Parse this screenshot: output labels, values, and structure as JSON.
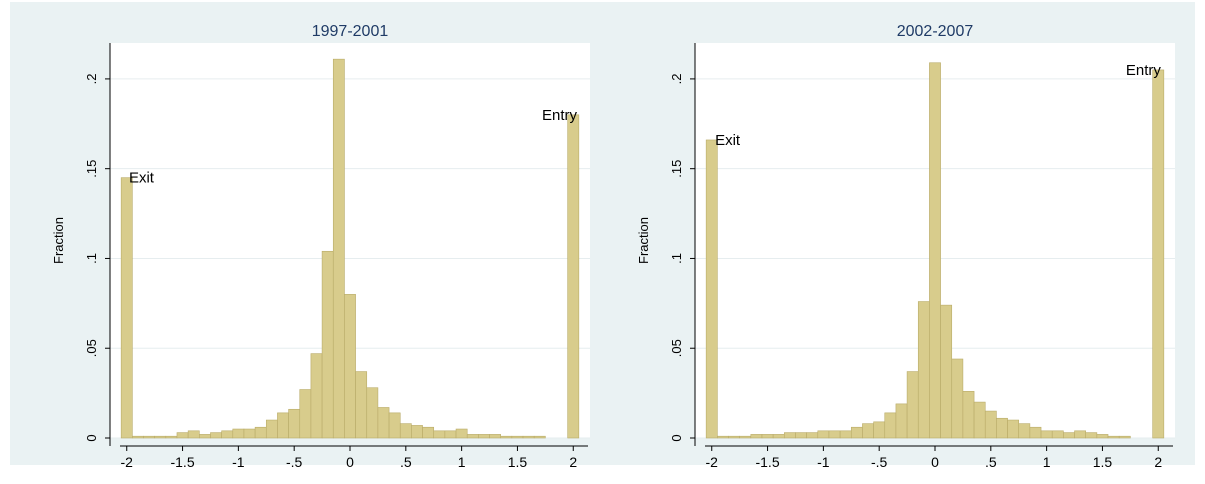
{
  "colors": {
    "background": "#eaf2f3",
    "bar_fill": "#d8cc8c",
    "bar_stroke": "#b9ab68",
    "title": "#1f3b66",
    "grid": "#e6edef"
  },
  "chart_data": [
    {
      "type": "bar",
      "title": "1997-2001",
      "xlabel": "",
      "ylabel": "Fraction",
      "xlim": [
        -2.15,
        2.15
      ],
      "ylim": [
        0,
        0.22
      ],
      "grid": true,
      "x_ticks": [
        "-2",
        "-1.5",
        "-1",
        "-.5",
        "0",
        ".5",
        "1",
        "1.5",
        "2"
      ],
      "y_ticks": [
        "0",
        ".05",
        ".1",
        ".15",
        ".2"
      ],
      "x_tick_values": [
        -2,
        -1.5,
        -1,
        -0.5,
        0,
        0.5,
        1,
        1.5,
        2
      ],
      "y_tick_values": [
        0,
        0.05,
        0.1,
        0.15,
        0.2
      ],
      "bin_width": 0.1,
      "x": [
        -2.0,
        -1.9,
        -1.8,
        -1.7,
        -1.6,
        -1.5,
        -1.4,
        -1.3,
        -1.2,
        -1.1,
        -1.0,
        -0.9,
        -0.8,
        -0.7,
        -0.6,
        -0.5,
        -0.4,
        -0.3,
        -0.2,
        -0.1,
        0.0,
        0.1,
        0.2,
        0.3,
        0.4,
        0.5,
        0.6,
        0.7,
        0.8,
        0.9,
        1.0,
        1.1,
        1.2,
        1.3,
        1.4,
        1.5,
        1.6,
        1.7,
        1.8,
        1.9,
        2.0
      ],
      "values": [
        0.145,
        0.001,
        0.001,
        0.001,
        0.001,
        0.003,
        0.004,
        0.002,
        0.003,
        0.004,
        0.005,
        0.005,
        0.006,
        0.01,
        0.014,
        0.016,
        0.027,
        0.047,
        0.104,
        0.211,
        0.08,
        0.037,
        0.028,
        0.017,
        0.014,
        0.008,
        0.007,
        0.006,
        0.004,
        0.004,
        0.005,
        0.002,
        0.002,
        0.002,
        0.001,
        0.001,
        0.001,
        0.001,
        0.0,
        0.0,
        0.18
      ],
      "annotations": [
        {
          "text": "Exit",
          "x": -1.98,
          "y": 0.145
        },
        {
          "text": "Entry",
          "x": 1.72,
          "y": 0.18
        }
      ]
    },
    {
      "type": "bar",
      "title": "2002-2007",
      "xlabel": "",
      "ylabel": "Fraction",
      "xlim": [
        -2.15,
        2.15
      ],
      "ylim": [
        0,
        0.22
      ],
      "grid": true,
      "x_ticks": [
        "-2",
        "-1.5",
        "-1",
        "-.5",
        "0",
        ".5",
        "1",
        "1.5",
        "2"
      ],
      "y_ticks": [
        "0",
        ".05",
        ".1",
        ".15",
        ".2"
      ],
      "x_tick_values": [
        -2,
        -1.5,
        -1,
        -0.5,
        0,
        0.5,
        1,
        1.5,
        2
      ],
      "y_tick_values": [
        0,
        0.05,
        0.1,
        0.15,
        0.2
      ],
      "bin_width": 0.1,
      "x": [
        -2.0,
        -1.9,
        -1.8,
        -1.7,
        -1.6,
        -1.5,
        -1.4,
        -1.3,
        -1.2,
        -1.1,
        -1.0,
        -0.9,
        -0.8,
        -0.7,
        -0.6,
        -0.5,
        -0.4,
        -0.3,
        -0.2,
        -0.1,
        0.0,
        0.1,
        0.2,
        0.3,
        0.4,
        0.5,
        0.6,
        0.7,
        0.8,
        0.9,
        1.0,
        1.1,
        1.2,
        1.3,
        1.4,
        1.5,
        1.6,
        1.7,
        1.8,
        1.9,
        2.0
      ],
      "values": [
        0.166,
        0.001,
        0.001,
        0.001,
        0.002,
        0.002,
        0.002,
        0.003,
        0.003,
        0.003,
        0.004,
        0.004,
        0.004,
        0.006,
        0.008,
        0.009,
        0.014,
        0.019,
        0.037,
        0.076,
        0.209,
        0.074,
        0.044,
        0.026,
        0.02,
        0.015,
        0.011,
        0.01,
        0.008,
        0.006,
        0.004,
        0.004,
        0.003,
        0.004,
        0.003,
        0.002,
        0.001,
        0.001,
        0.0,
        0.0,
        0.205
      ],
      "annotations": [
        {
          "text": "Exit",
          "x": -1.97,
          "y": 0.166
        },
        {
          "text": "Entry",
          "x": 1.71,
          "y": 0.205
        }
      ]
    }
  ]
}
